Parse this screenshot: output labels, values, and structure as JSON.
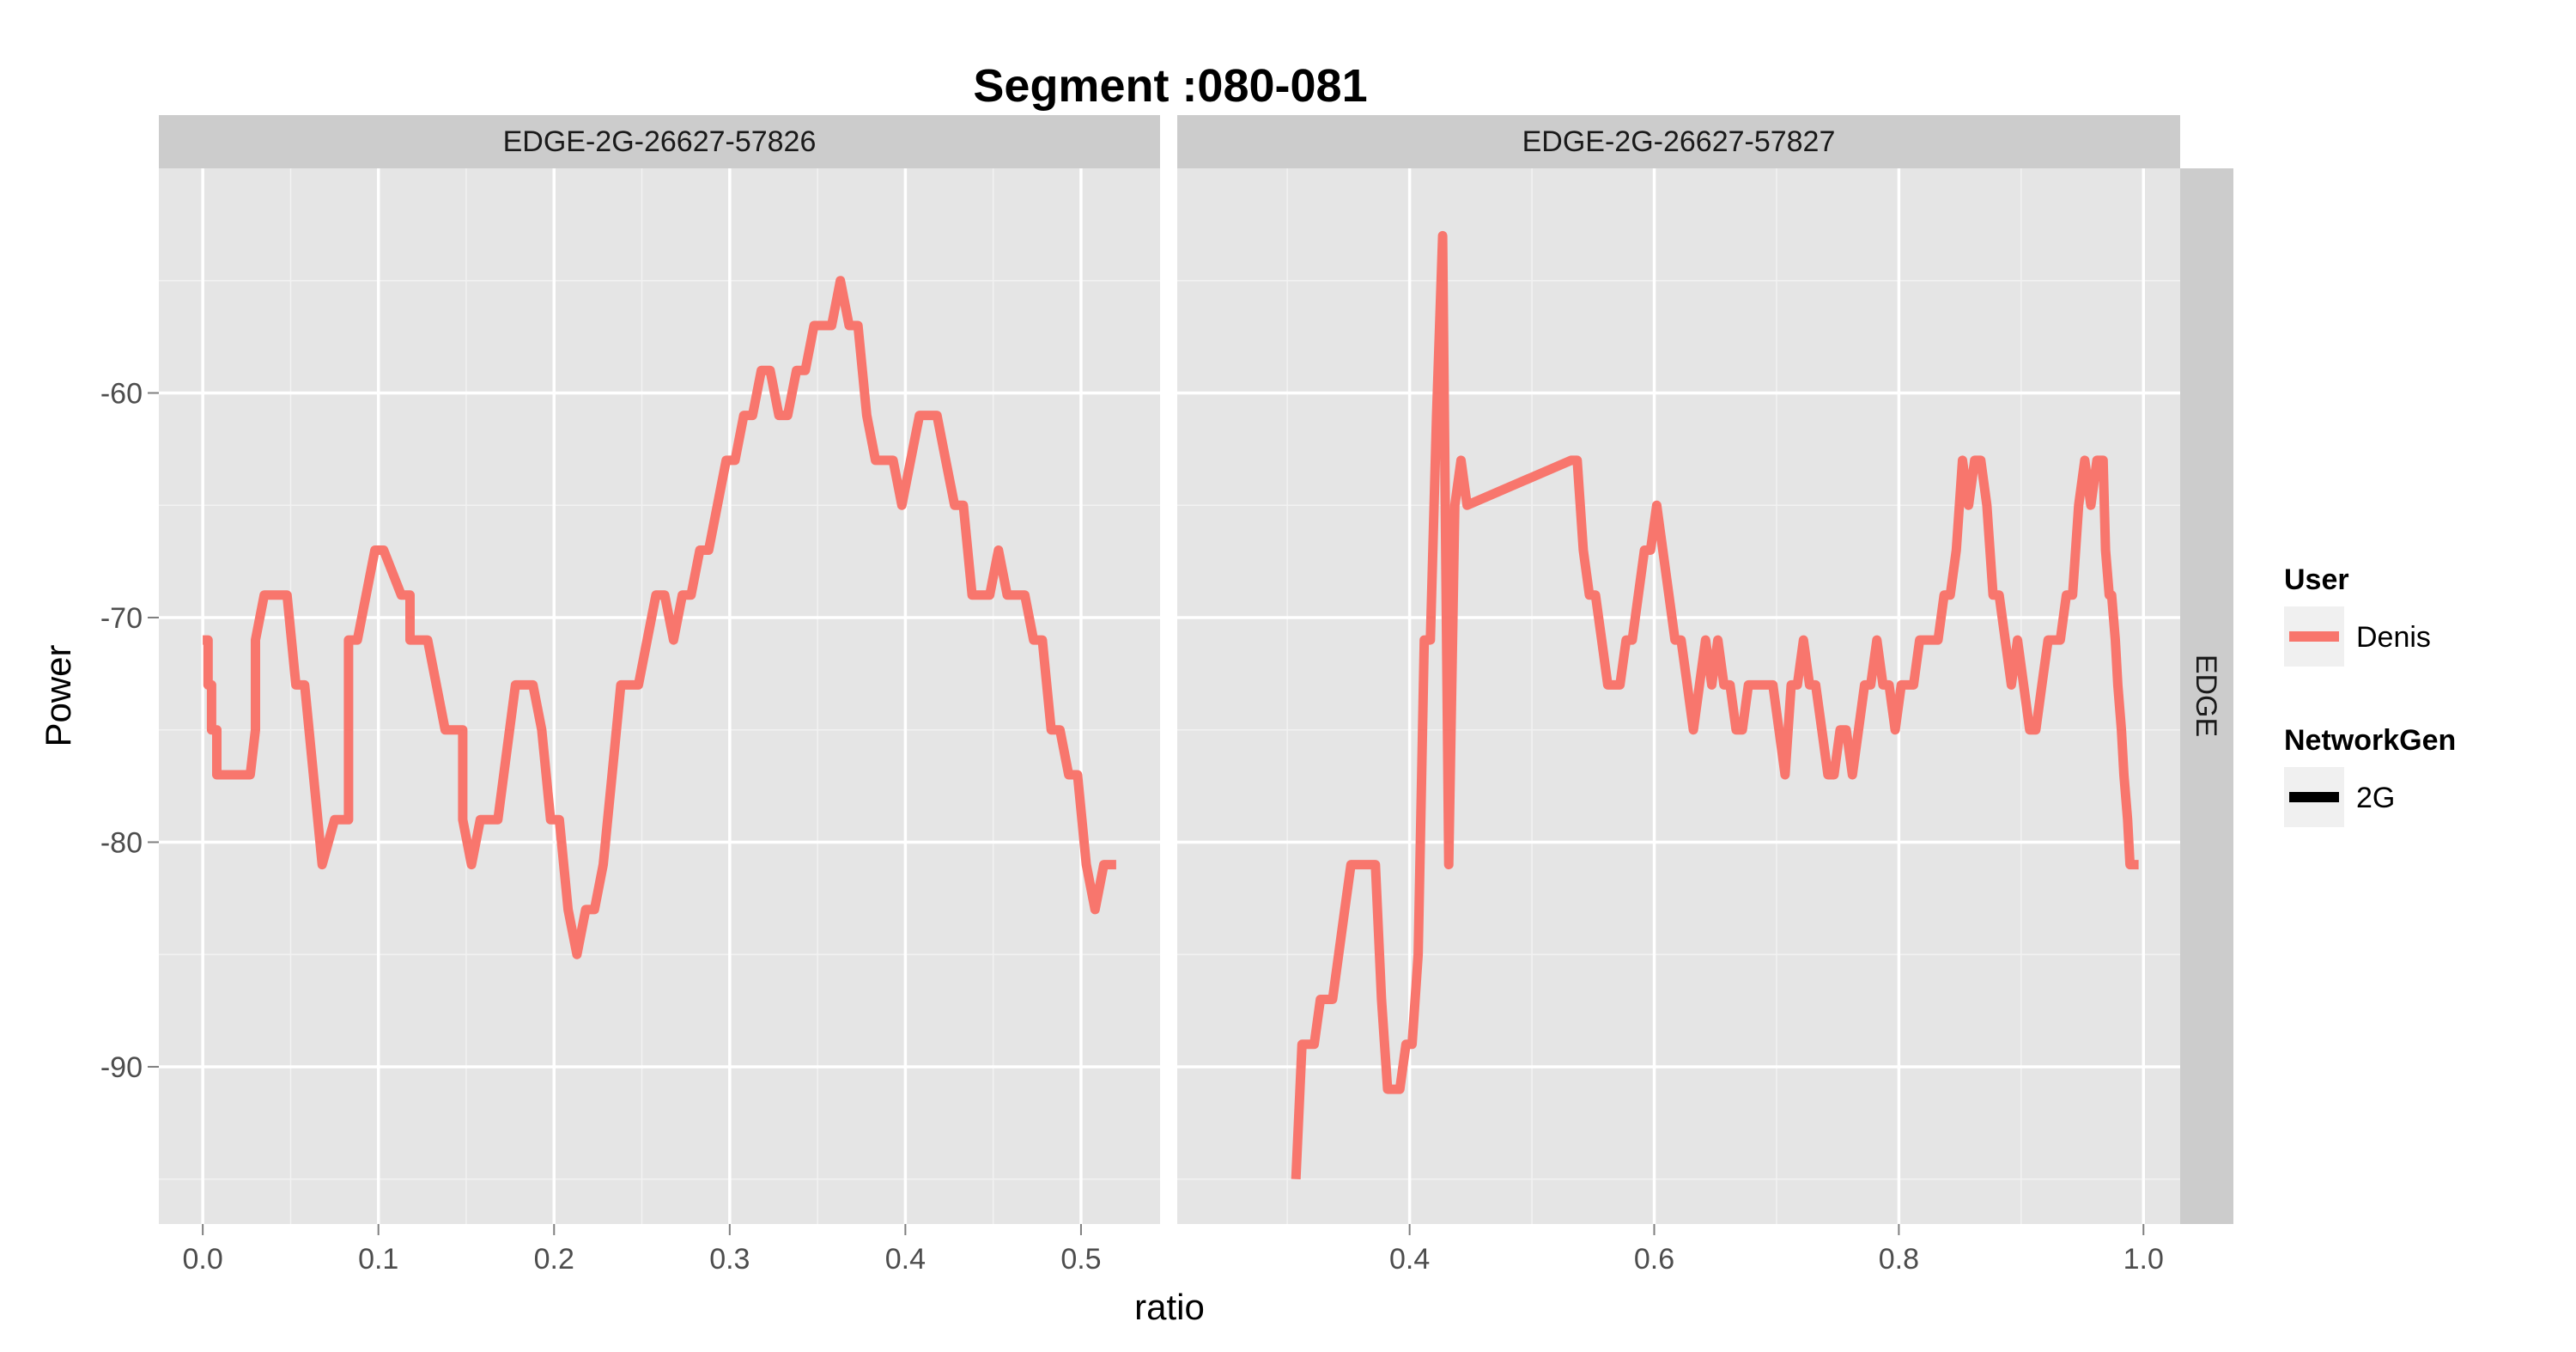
{
  "chart_data": {
    "type": "line",
    "title": "Segment :080-081",
    "xlabel": "ratio",
    "ylabel": "Power",
    "row_strip": "EDGE",
    "ylim": [
      -97,
      -50
    ],
    "yticks": [
      -90,
      -80,
      -70,
      -60
    ],
    "grid": true,
    "legend_position": "right",
    "legend": {
      "user_title": "User",
      "user_entries": [
        "Denis"
      ],
      "networkgen_title": "NetworkGen",
      "networkgen_entries": [
        "2G"
      ]
    },
    "colors": {
      "series": "#F8766D",
      "panel_bg": "#E5E5E5",
      "strip_bg": "#CCCCCC",
      "grid": "#FFFFFF"
    },
    "panels": [
      {
        "strip": "EDGE-2G-26627-57826",
        "xlim": [
          -0.025,
          0.545
        ],
        "xticks": [
          0.0,
          0.1,
          0.2,
          0.3,
          0.4,
          0.5
        ],
        "xtick_labels": [
          "0.0",
          "0.1",
          "0.2",
          "0.3",
          "0.4",
          "0.5"
        ],
        "series": [
          {
            "name": "Denis",
            "x": [
              0.0,
              0.003,
              0.003,
              0.005,
              0.005,
              0.008,
              0.008,
              0.01,
              0.01,
              0.027,
              0.03,
              0.03,
              0.035,
              0.048,
              0.053,
              0.053,
              0.058,
              0.068,
              0.068,
              0.075,
              0.078,
              0.083,
              0.083,
              0.088,
              0.088,
              0.093,
              0.098,
              0.103,
              0.103,
              0.113,
              0.118,
              0.118,
              0.123,
              0.128,
              0.128,
              0.138,
              0.148,
              0.148,
              0.153,
              0.158,
              0.163,
              0.168,
              0.168,
              0.178,
              0.183,
              0.188,
              0.193,
              0.198,
              0.203,
              0.203,
              0.208,
              0.213,
              0.218,
              0.223,
              0.228,
              0.233,
              0.238,
              0.243,
              0.248,
              0.253,
              0.258,
              0.263,
              0.268,
              0.273,
              0.278,
              0.283,
              0.288,
              0.293,
              0.293,
              0.298,
              0.303,
              0.308,
              0.313,
              0.313,
              0.318,
              0.318,
              0.323,
              0.328,
              0.333,
              0.338,
              0.343,
              0.348,
              0.353,
              0.358,
              0.363,
              0.368,
              0.373,
              0.378,
              0.383,
              0.388,
              0.393,
              0.398,
              0.403,
              0.408,
              0.413,
              0.418,
              0.423,
              0.428,
              0.433,
              0.438,
              0.443,
              0.448,
              0.453,
              0.458,
              0.463,
              0.468,
              0.473,
              0.478,
              0.483,
              0.488,
              0.493,
              0.498,
              0.503,
              0.508,
              0.513,
              0.518,
              0.52
            ],
            "values": [
              -71,
              -71,
              -73,
              -73,
              -75,
              -75,
              -77,
              -77,
              -77,
              -77,
              -75,
              -71,
              -69,
              -69,
              -73,
              -73,
              -73,
              -81,
              -81,
              -79,
              -79,
              -79,
              -71,
              -71,
              -71,
              -69,
              -67,
              -67,
              -67,
              -69,
              -69,
              -71,
              -71,
              -71,
              -71,
              -75,
              -75,
              -79,
              -81,
              -79,
              -79,
              -79,
              -79,
              -73,
              -73,
              -73,
              -75,
              -79,
              -79,
              -79,
              -83,
              -85,
              -83,
              -83,
              -81,
              -77,
              -73,
              -73,
              -73,
              -71,
              -69,
              -69,
              -71,
              -69,
              -69,
              -67,
              -67,
              -65,
              -65,
              -63,
              -63,
              -61,
              -61,
              -61,
              -59,
              -59,
              -59,
              -61,
              -61,
              -59,
              -59,
              -57,
              -57,
              -57,
              -55,
              -57,
              -57,
              -61,
              -63,
              -63,
              -63,
              -65,
              -63,
              -61,
              -61,
              -61,
              -63,
              -65,
              -65,
              -69,
              -69,
              -69,
              -67,
              -69,
              -69,
              -69,
              -71,
              -71,
              -75,
              -75,
              -77,
              -77,
              -81,
              -83,
              -81,
              -81,
              -81
            ]
          }
        ]
      },
      {
        "strip": "EDGE-2G-26627-57827",
        "xlim": [
          0.21,
          1.03
        ],
        "xticks": [
          0.4,
          0.6,
          0.8,
          1.0
        ],
        "xtick_labels": [
          "0.4",
          "0.6",
          "0.8",
          "1.0"
        ],
        "series": [
          {
            "name": "Denis",
            "x": [
              0.307,
              0.312,
              0.322,
              0.327,
              0.337,
              0.347,
              0.352,
              0.357,
              0.362,
              0.367,
              0.372,
              0.377,
              0.382,
              0.387,
              0.392,
              0.397,
              0.402,
              0.407,
              0.412,
              0.417,
              0.422,
              0.427,
              0.432,
              0.437,
              0.442,
              0.447,
              0.532,
              0.537,
              0.542,
              0.547,
              0.552,
              0.557,
              0.562,
              0.567,
              0.572,
              0.577,
              0.582,
              0.587,
              0.592,
              0.597,
              0.602,
              0.607,
              0.612,
              0.617,
              0.622,
              0.627,
              0.632,
              0.637,
              0.642,
              0.647,
              0.652,
              0.657,
              0.662,
              0.667,
              0.672,
              0.677,
              0.682,
              0.687,
              0.692,
              0.697,
              0.702,
              0.707,
              0.712,
              0.717,
              0.722,
              0.727,
              0.732,
              0.737,
              0.742,
              0.747,
              0.752,
              0.757,
              0.762,
              0.767,
              0.772,
              0.777,
              0.782,
              0.787,
              0.792,
              0.797,
              0.802,
              0.807,
              0.812,
              0.817,
              0.822,
              0.827,
              0.832,
              0.837,
              0.842,
              0.847,
              0.852,
              0.857,
              0.862,
              0.867,
              0.872,
              0.877,
              0.882,
              0.887,
              0.892,
              0.897,
              0.902,
              0.907,
              0.912,
              0.917,
              0.922,
              0.927,
              0.932,
              0.937,
              0.942,
              0.947,
              0.952,
              0.957,
              0.962,
              0.967,
              0.969,
              0.972,
              0.974,
              0.977,
              0.979,
              0.982,
              0.984,
              0.987,
              0.989,
              0.992,
              0.994,
              0.996
            ],
            "values": [
              -95,
              -89,
              -89,
              -87,
              -87,
              -83,
              -81,
              -81,
              -81,
              -81,
              -81,
              -87,
              -91,
              -91,
              -91,
              -89,
              -89,
              -85,
              -71,
              -71,
              -61,
              -53,
              -81,
              -65,
              -63,
              -65,
              -63,
              -63,
              -67,
              -69,
              -69,
              -71,
              -73,
              -73,
              -73,
              -71,
              -71,
              -69,
              -67,
              -67,
              -65,
              -67,
              -69,
              -71,
              -71,
              -73,
              -75,
              -73,
              -71,
              -73,
              -71,
              -73,
              -73,
              -75,
              -75,
              -73,
              -73,
              -73,
              -73,
              -73,
              -75,
              -77,
              -73,
              -73,
              -71,
              -73,
              -73,
              -75,
              -77,
              -77,
              -75,
              -75,
              -77,
              -75,
              -73,
              -73,
              -71,
              -73,
              -73,
              -75,
              -73,
              -73,
              -73,
              -71,
              -71,
              -71,
              -71,
              -69,
              -69,
              -67,
              -63,
              -65,
              -63,
              -63,
              -65,
              -69,
              -69,
              -71,
              -73,
              -71,
              -73,
              -75,
              -75,
              -73,
              -71,
              -71,
              -71,
              -69,
              -69,
              -65,
              -63,
              -65,
              -63,
              -63,
              -67,
              -69,
              -69,
              -71,
              -73,
              -75,
              -77,
              -79,
              -81,
              -81,
              -81,
              -81
            ]
          }
        ]
      }
    ]
  }
}
